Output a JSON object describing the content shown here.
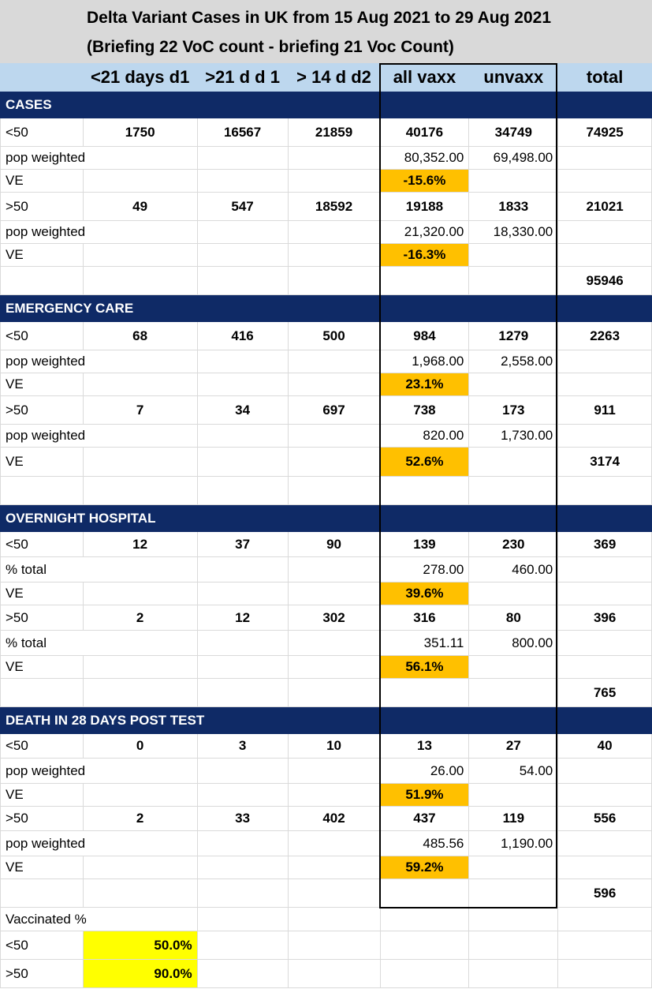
{
  "title": {
    "line1": "Delta Variant Cases in UK from 15 Aug 2021 to 29 Aug 2021",
    "line2": "(Briefing 22 VoC count - briefing 21 Voc Count)"
  },
  "headers": [
    "<21 days d1",
    ">21 d d 1",
    "> 14 d d2",
    "all vaxx",
    "unvaxx",
    "total"
  ],
  "sections": [
    {
      "name": "CASES",
      "groups": [
        {
          "label": "<50",
          "d1_lt21": "1750",
          "d1_gt21": "16567",
          "d2_gt14": "21859",
          "all_vaxx": "40176",
          "unvaxx": "34749",
          "total": "74925",
          "weighted_label": "pop weighted",
          "weighted_vaxx": "80,352.00",
          "weighted_unvaxx": "69,498.00",
          "ve_label": "VE",
          "ve": "-15.6%",
          "ve_total": ""
        },
        {
          "label": ">50",
          "d1_lt21": "49",
          "d1_gt21": "547",
          "d2_gt14": "18592",
          "all_vaxx": "19188",
          "unvaxx": "1833",
          "total": "21021",
          "weighted_label": "pop weighted",
          "weighted_vaxx": "21,320.00",
          "weighted_unvaxx": "18,330.00",
          "ve_label": "VE",
          "ve": "-16.3%",
          "ve_total": ""
        }
      ],
      "grand_total": "95946"
    },
    {
      "name": "EMERGENCY CARE",
      "groups": [
        {
          "label": "<50",
          "d1_lt21": "68",
          "d1_gt21": "416",
          "d2_gt14": "500",
          "all_vaxx": "984",
          "unvaxx": "1279",
          "total": "2263",
          "weighted_label": "pop weighted",
          "weighted_vaxx": "1,968.00",
          "weighted_unvaxx": "2,558.00",
          "ve_label": "VE",
          "ve": "23.1%",
          "ve_total": ""
        },
        {
          "label": ">50",
          "d1_lt21": "7",
          "d1_gt21": "34",
          "d2_gt14": "697",
          "all_vaxx": "738",
          "unvaxx": "173",
          "total": "911",
          "weighted_label": "pop weighted",
          "weighted_vaxx": "820.00",
          "weighted_unvaxx": "1,730.00",
          "ve_label": "VE",
          "ve": "52.6%",
          "ve_total": "3174"
        }
      ],
      "grand_total": ""
    },
    {
      "name": "OVERNIGHT HOSPITAL",
      "groups": [
        {
          "label": "<50",
          "d1_lt21": "12",
          "d1_gt21": "37",
          "d2_gt14": "90",
          "all_vaxx": "139",
          "unvaxx": "230",
          "total": "369",
          "weighted_label": "% total",
          "weighted_vaxx": "278.00",
          "weighted_unvaxx": "460.00",
          "ve_label": "VE",
          "ve": "39.6%",
          "ve_total": ""
        },
        {
          "label": ">50",
          "d1_lt21": "2",
          "d1_gt21": "12",
          "d2_gt14": "302",
          "all_vaxx": "316",
          "unvaxx": "80",
          "total": "396",
          "weighted_label": "% total",
          "weighted_vaxx": "351.11",
          "weighted_unvaxx": "800.00",
          "ve_label": "VE",
          "ve": "56.1%",
          "ve_total": ""
        }
      ],
      "grand_total": "765"
    },
    {
      "name": "DEATH IN 28 DAYS POST TEST",
      "groups": [
        {
          "label": "<50",
          "d1_lt21": "0",
          "d1_gt21": "3",
          "d2_gt14": "10",
          "all_vaxx": "13",
          "unvaxx": "27",
          "total": "40",
          "weighted_label": "pop weighted",
          "weighted_vaxx": "26.00",
          "weighted_unvaxx": "54.00",
          "ve_label": "VE",
          "ve": "51.9%",
          "ve_total": ""
        },
        {
          "label": ">50",
          "d1_lt21": "2",
          "d1_gt21": "33",
          "d2_gt14": "402",
          "all_vaxx": "437",
          "unvaxx": "119",
          "total": "556",
          "weighted_label": "pop weighted",
          "weighted_vaxx": "485.56",
          "weighted_unvaxx": "1,190.00",
          "ve_label": "VE",
          "ve": "59.2%",
          "ve_total": ""
        }
      ],
      "grand_total": "596"
    }
  ],
  "vaccinated": {
    "label": "Vaccinated %",
    "rows": [
      {
        "label": "<50",
        "value": "50.0%"
      },
      {
        "label": ">50",
        "value": "90.0%"
      }
    ]
  },
  "colors": {
    "header_bg": "#bdd7ee",
    "section_bg": "#0f2a66",
    "ve_bg": "#ffc000",
    "vacc_bg": "#ffff00",
    "title_bg": "#d9d9d9"
  }
}
